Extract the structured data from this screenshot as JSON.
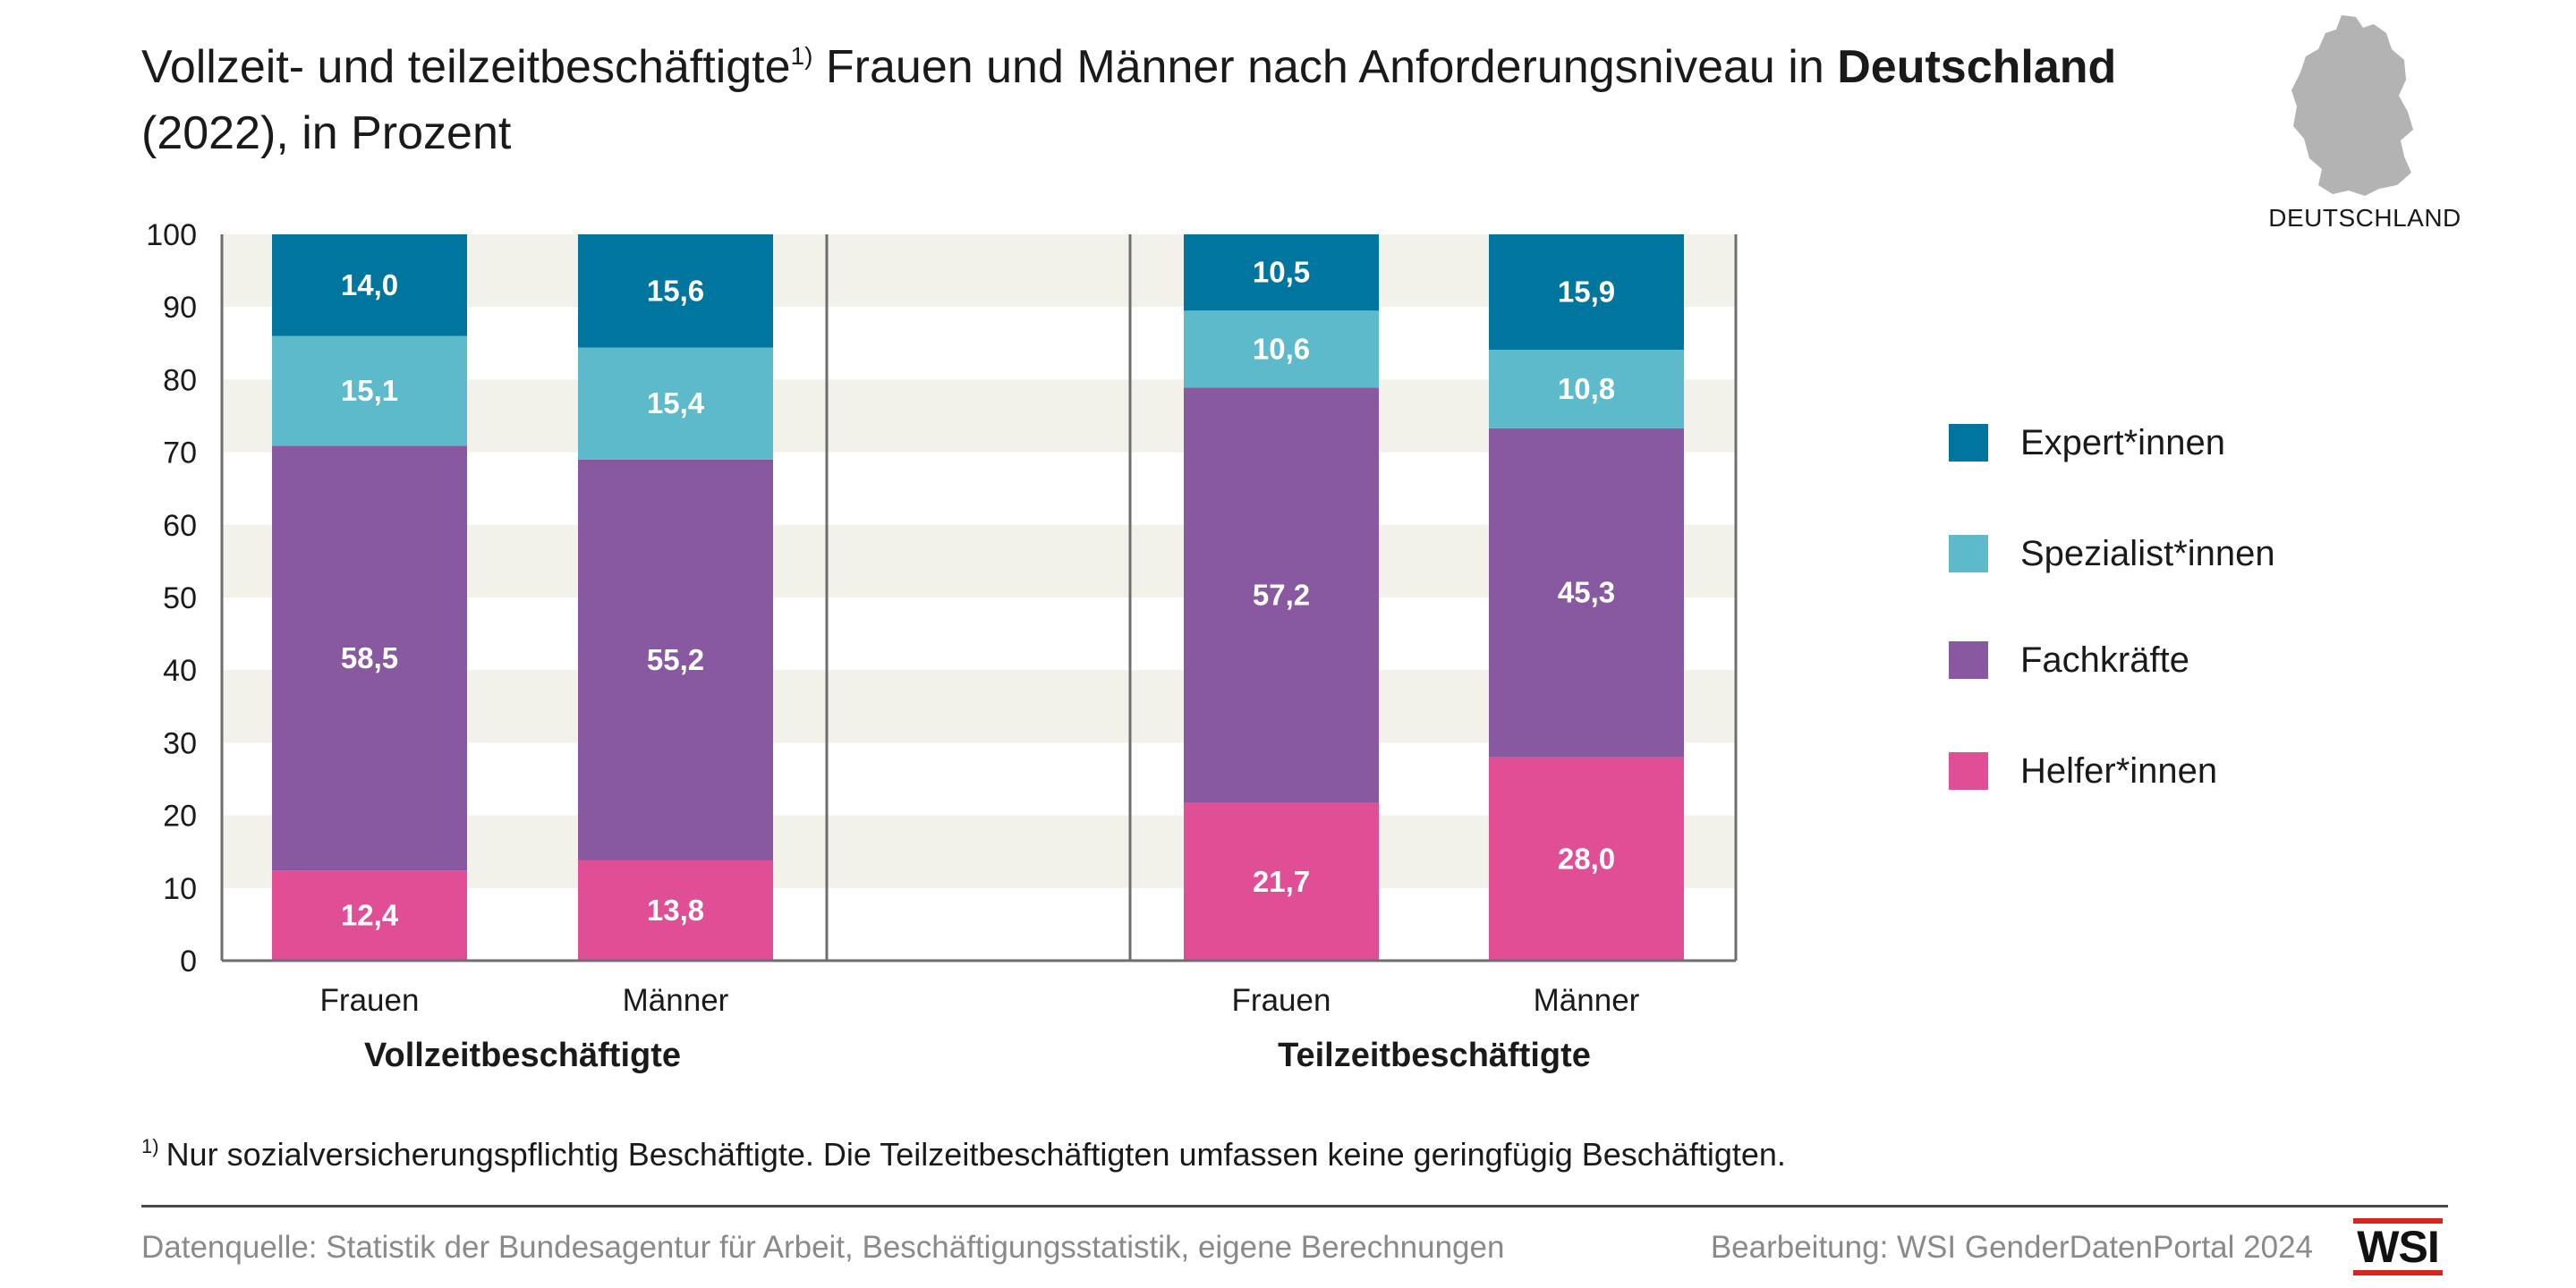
{
  "title": {
    "part1": "Vollzeit- und teilzeitbeschäftigte",
    "footnote_mark": "1)",
    "part2": " Frauen und Männer nach Anforderungsniveau in ",
    "bold": "Deutschland",
    "part3": " (2022), in Prozent"
  },
  "map": {
    "label": "DEUTSCHLAND",
    "icon": "germany-map-icon",
    "color": "#b3b3b3"
  },
  "footnote": {
    "mark": "1)",
    "text": "Nur sozialversicherungspflichtig Beschäftigte. Die Teilzeitbeschäftigten umfassen keine geringfügig Beschäftigten."
  },
  "source": "Datenquelle: Statistik der Bundesagentur für Arbeit, Beschäftigungsstatistik, eigene Berechnungen",
  "credit": "Bearbeitung: WSI GenderDatenPortal 2024",
  "logo": {
    "text": "WSI",
    "accent": "#d7261e"
  },
  "colors": {
    "expert": "#00769f",
    "spezialist": "#5dbaca",
    "fachkraft": "#8858a0",
    "helfer": "#e04f96",
    "band": "#f2f1ea"
  },
  "chart_data": {
    "type": "bar",
    "stacked": true,
    "ylim": [
      0,
      100
    ],
    "yticks": [
      "0",
      "10",
      "20",
      "30",
      "40",
      "50",
      "60",
      "70",
      "80",
      "90",
      "100"
    ],
    "grid": "alternating horizontal bands",
    "legend_position": "right",
    "groups": [
      "Vollzeitbeschäftigte",
      "Teilzeitbeschäftigte"
    ],
    "categories": [
      "Frauen",
      "Männer",
      "Frauen",
      "Männer"
    ],
    "category_group": [
      0,
      0,
      1,
      1
    ],
    "series": [
      {
        "name": "Helfer*innen",
        "key": "helfer",
        "values": [
          12.4,
          13.8,
          21.7,
          28.0
        ],
        "labels": [
          "12,4",
          "13,8",
          "21,7",
          "28,0"
        ]
      },
      {
        "name": "Fachkräfte",
        "key": "fachkraft",
        "values": [
          58.5,
          55.2,
          57.2,
          45.3
        ],
        "labels": [
          "58,5",
          "55,2",
          "57,2",
          "45,3"
        ]
      },
      {
        "name": "Spezialist*innen",
        "key": "spezialist",
        "values": [
          15.1,
          15.4,
          10.6,
          10.8
        ],
        "labels": [
          "15,1",
          "15,4",
          "10,6",
          "10,8"
        ]
      },
      {
        "name": "Expert*innen",
        "key": "expert",
        "values": [
          14.0,
          15.6,
          10.5,
          15.9
        ],
        "labels": [
          "14,0",
          "15,6",
          "10,5",
          "15,9"
        ]
      }
    ],
    "legend_order": [
      "Expert*innen",
      "Spezialist*innen",
      "Fachkräfte",
      "Helfer*innen"
    ]
  }
}
